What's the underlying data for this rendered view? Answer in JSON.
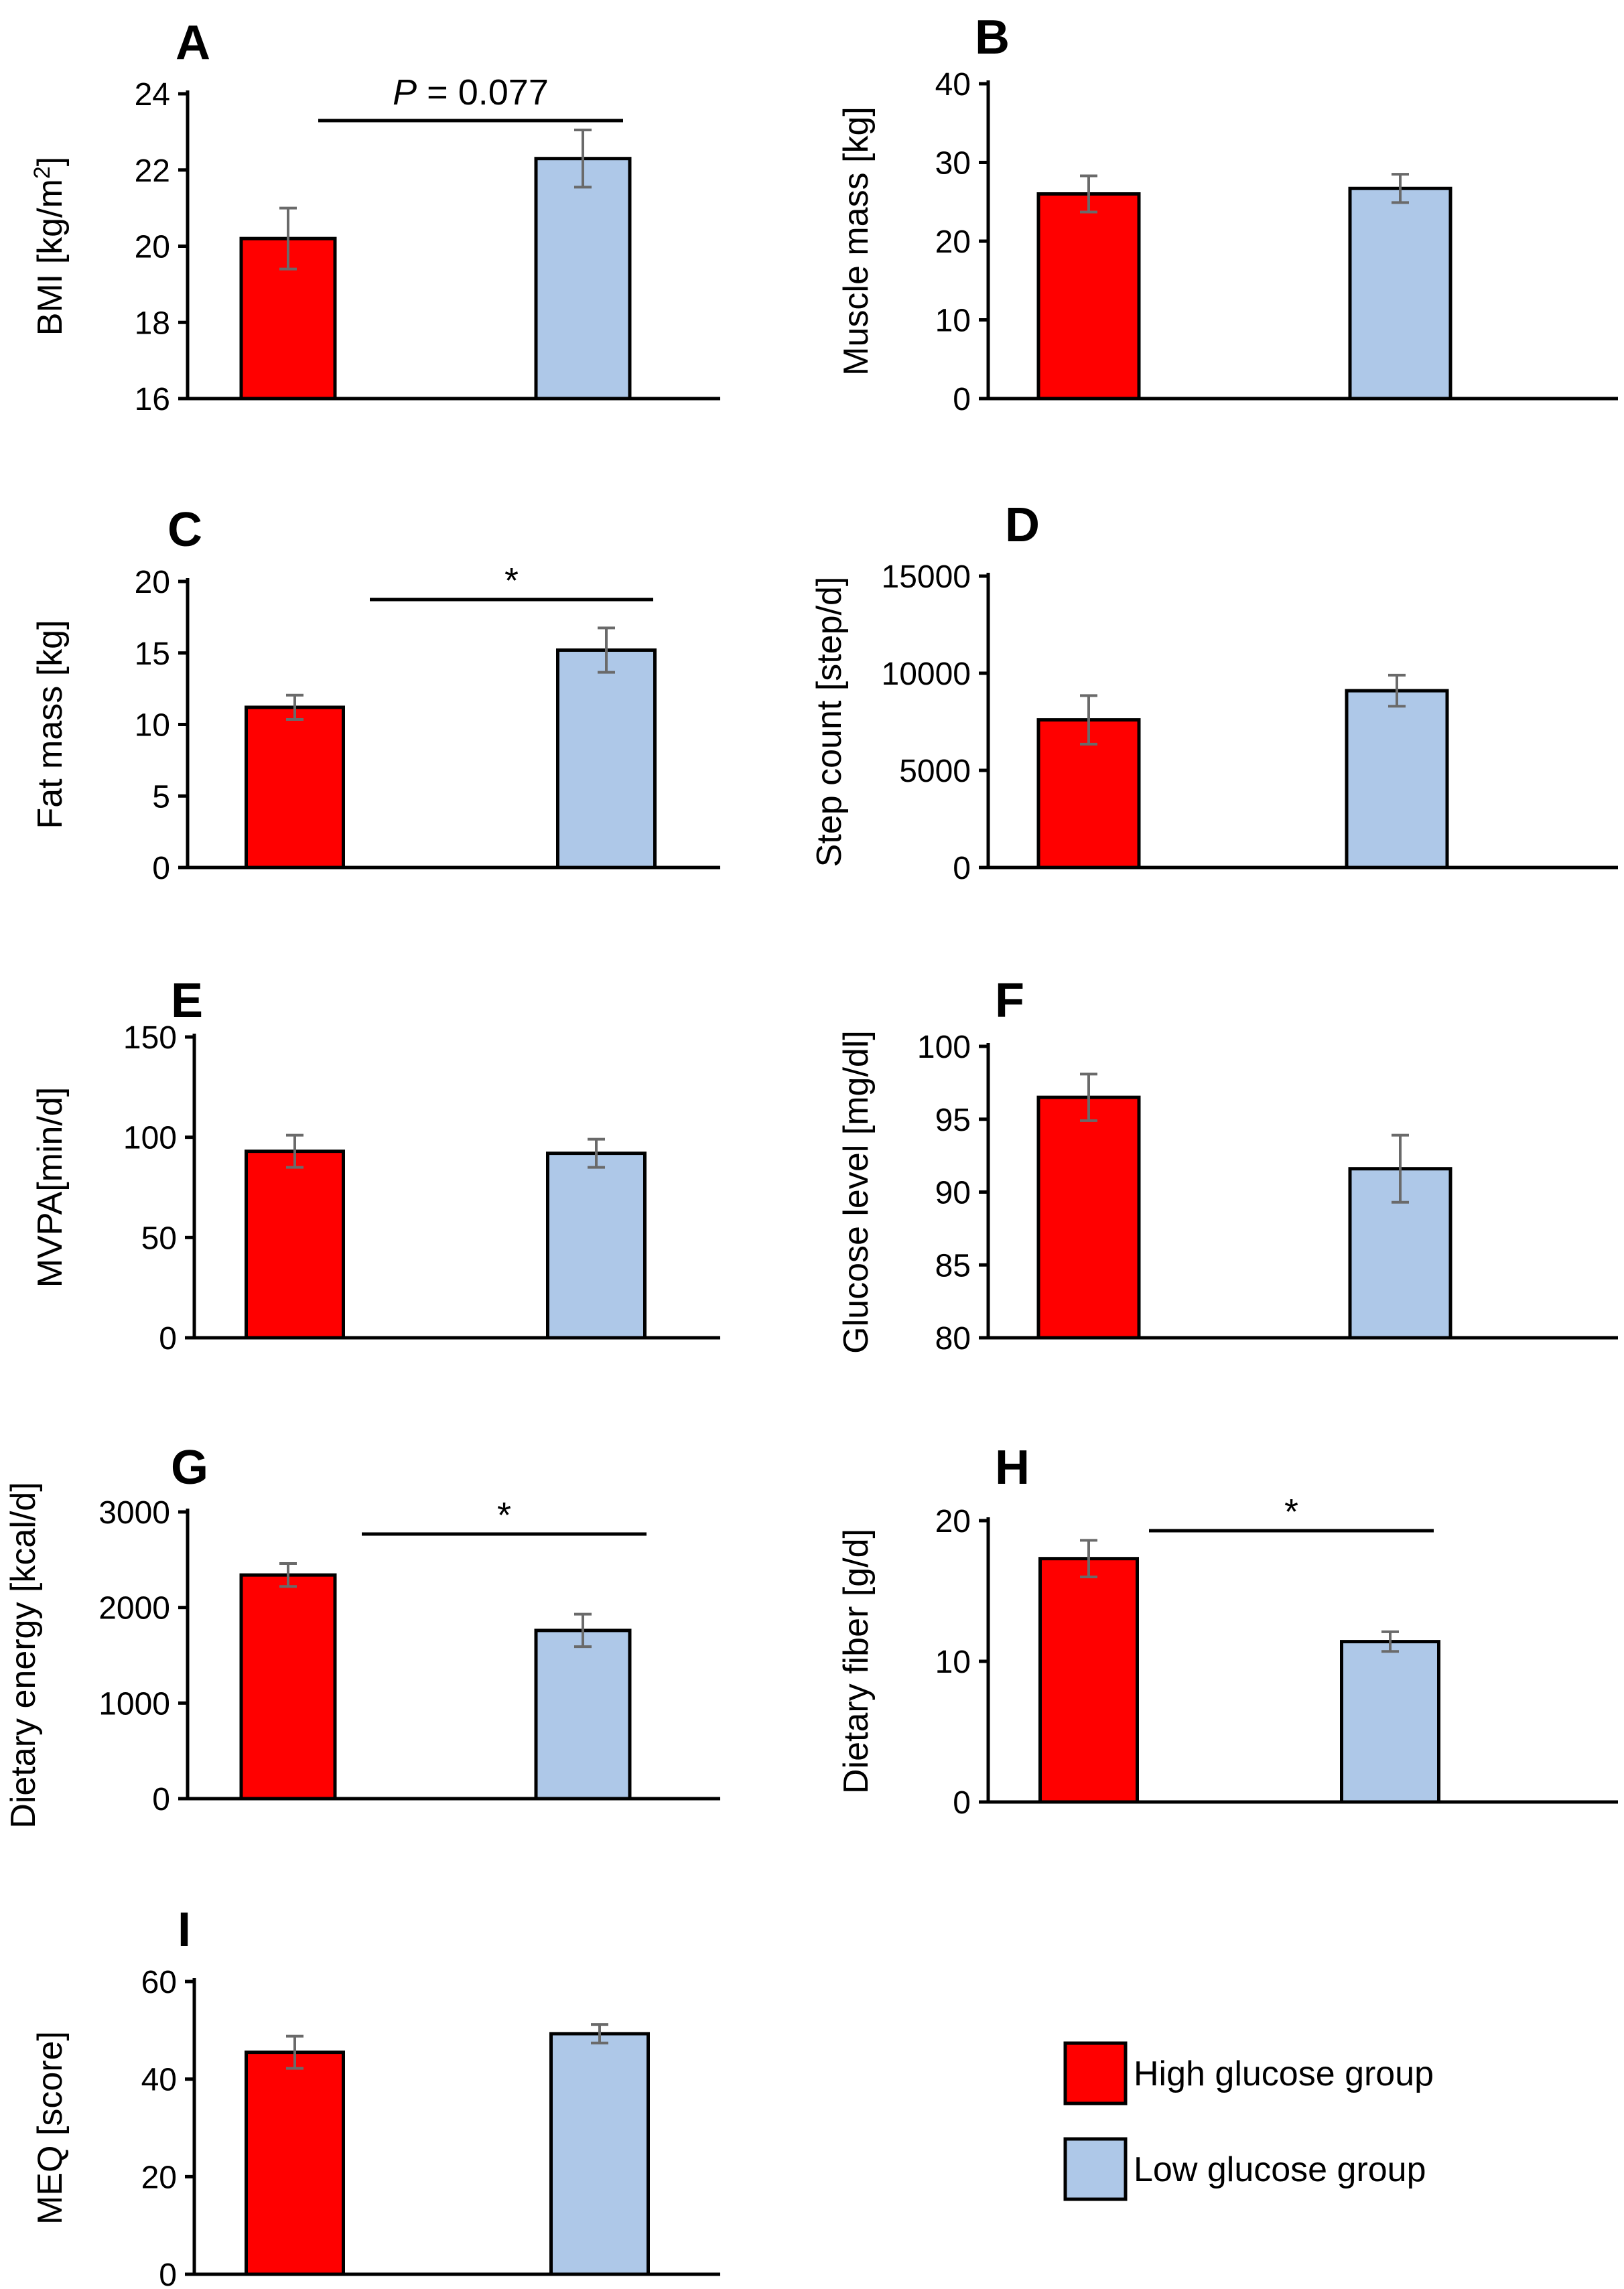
{
  "legend": {
    "items": [
      {
        "label": "High glucose group",
        "color": "#ff0000"
      },
      {
        "label": "Low glucose group",
        "color": "#aec8e8"
      }
    ]
  },
  "chart_data": [
    {
      "id": "A",
      "letter": "A",
      "type": "bar",
      "ylabel": "BMI [kg/m²]",
      "ylabel_main": "BMI [kg/m",
      "ylabel_sup": "2",
      "ylabel_tail": "]",
      "ylim": [
        16,
        24
      ],
      "yticks": [
        16,
        18,
        20,
        22,
        24
      ],
      "categories": [
        "High glucose group",
        "Low glucose group"
      ],
      "values": [
        20.2,
        22.3
      ],
      "errors": [
        0.8,
        0.75
      ],
      "annotation": {
        "italic": "P",
        "rest": " = 0.077"
      }
    },
    {
      "id": "B",
      "letter": "B",
      "type": "bar",
      "ylabel": "Muscle mass [kg]",
      "ylim": [
        0,
        40
      ],
      "yticks": [
        0,
        10,
        20,
        30,
        40
      ],
      "categories": [
        "High glucose group",
        "Low glucose group"
      ],
      "values": [
        26,
        26.7
      ],
      "errors": [
        2.3,
        1.8
      ]
    },
    {
      "id": "C",
      "letter": "C",
      "type": "bar",
      "ylabel": "Fat mass [kg]",
      "ylim": [
        0,
        20
      ],
      "yticks": [
        0,
        5,
        10,
        15,
        20
      ],
      "categories": [
        "High glucose group",
        "Low glucose group"
      ],
      "values": [
        11.2,
        15.2
      ],
      "errors": [
        0.85,
        1.55
      ],
      "annotation": {
        "italic": "",
        "rest": "*"
      }
    },
    {
      "id": "D",
      "letter": "D",
      "type": "bar",
      "ylabel": "Step count [step/d]",
      "ylim": [
        0,
        15000
      ],
      "yticks": [
        0,
        5000,
        10000,
        15000
      ],
      "categories": [
        "High glucose group",
        "Low glucose group"
      ],
      "values": [
        7600,
        9100
      ],
      "errors": [
        1250,
        800
      ]
    },
    {
      "id": "E",
      "letter": "E",
      "type": "bar",
      "ylabel": "MVPA[min/d]",
      "ylim": [
        0,
        150
      ],
      "yticks": [
        0,
        50,
        100,
        150
      ],
      "categories": [
        "High glucose group",
        "Low glucose group"
      ],
      "values": [
        93,
        92
      ],
      "errors": [
        8,
        7
      ]
    },
    {
      "id": "F",
      "letter": "F",
      "type": "bar",
      "ylabel": "Glucose level [mg/dl]",
      "ylim": [
        80,
        100
      ],
      "yticks": [
        80,
        85,
        90,
        95,
        100
      ],
      "categories": [
        "High glucose group",
        "Low glucose group"
      ],
      "values": [
        96.5,
        91.6
      ],
      "errors": [
        1.6,
        2.3
      ]
    },
    {
      "id": "G",
      "letter": "G",
      "type": "bar",
      "ylabel": "Dietary energy [kcal/d]",
      "ylim": [
        0,
        3000
      ],
      "yticks": [
        0,
        1000,
        2000,
        3000
      ],
      "categories": [
        "High glucose group",
        "Low glucose group"
      ],
      "values": [
        2340,
        1760
      ],
      "errors": [
        120,
        170
      ],
      "annotation": {
        "italic": "",
        "rest": "*"
      }
    },
    {
      "id": "H",
      "letter": "H",
      "type": "bar",
      "ylabel": "Dietary fiber [g/d]",
      "ylim": [
        0,
        20
      ],
      "yticks": [
        0,
        10,
        20
      ],
      "categories": [
        "High glucose group",
        "Low glucose group"
      ],
      "values": [
        17.3,
        11.4
      ],
      "errors": [
        1.3,
        0.7
      ],
      "annotation": {
        "italic": "",
        "rest": "*"
      }
    },
    {
      "id": "I",
      "letter": "I",
      "type": "bar",
      "ylabel": "MEQ [score]",
      "ylim": [
        0,
        60
      ],
      "yticks": [
        0,
        20,
        40,
        60
      ],
      "categories": [
        "High glucose group",
        "Low glucose group"
      ],
      "values": [
        45.5,
        49.3
      ],
      "errors": [
        3.3,
        1.9
      ]
    }
  ]
}
